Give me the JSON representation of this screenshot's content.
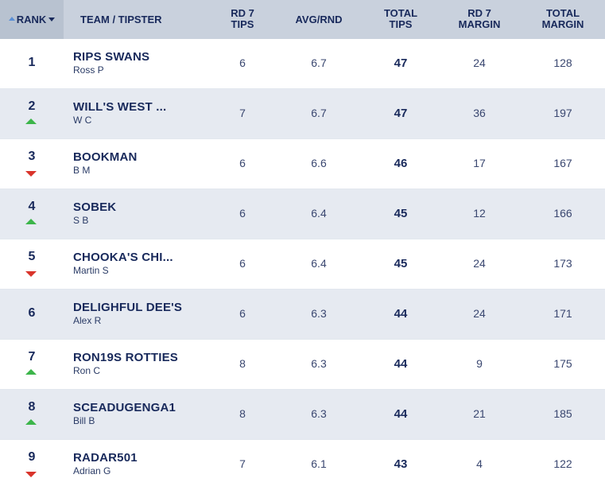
{
  "header": {
    "rank": "RANK",
    "team": "TEAM / TIPSTER",
    "rd_tips": [
      "RD 7",
      "TIPS"
    ],
    "avg": "AVG/RND",
    "total_tips": [
      "TOTAL",
      "TIPS"
    ],
    "rd_margin": [
      "RD 7",
      "MARGIN"
    ],
    "total_margin": [
      "TOTAL",
      "MARGIN"
    ]
  },
  "colors": {
    "up": "#3cb54a",
    "down": "#d9342b",
    "header_bg": "#c9d1dd",
    "alt_row": "#e6eaf1"
  },
  "rows": [
    {
      "rank": "1",
      "movement": "none",
      "team": "RIPS SWANS",
      "tipster": "Ross P",
      "rd_tips": "6",
      "avg": "6.7",
      "total_tips": "47",
      "rd_margin": "24",
      "total_margin": "128"
    },
    {
      "rank": "2",
      "movement": "up",
      "team": "WILL'S WEST ...",
      "tipster": "W C",
      "rd_tips": "7",
      "avg": "6.7",
      "total_tips": "47",
      "rd_margin": "36",
      "total_margin": "197"
    },
    {
      "rank": "3",
      "movement": "down",
      "team": "BOOKMAN",
      "tipster": "B M",
      "rd_tips": "6",
      "avg": "6.6",
      "total_tips": "46",
      "rd_margin": "17",
      "total_margin": "167"
    },
    {
      "rank": "4",
      "movement": "up",
      "team": "SOBEK",
      "tipster": "S B",
      "rd_tips": "6",
      "avg": "6.4",
      "total_tips": "45",
      "rd_margin": "12",
      "total_margin": "166"
    },
    {
      "rank": "5",
      "movement": "down",
      "team": "CHOOKA'S CHI...",
      "tipster": "Martin S",
      "rd_tips": "6",
      "avg": "6.4",
      "total_tips": "45",
      "rd_margin": "24",
      "total_margin": "173"
    },
    {
      "rank": "6",
      "movement": "none",
      "team": "DELIGHFUL DEE'S",
      "tipster": "Alex R",
      "rd_tips": "6",
      "avg": "6.3",
      "total_tips": "44",
      "rd_margin": "24",
      "total_margin": "171"
    },
    {
      "rank": "7",
      "movement": "up",
      "team": "RON19S ROTTIES",
      "tipster": "Ron C",
      "rd_tips": "8",
      "avg": "6.3",
      "total_tips": "44",
      "rd_margin": "9",
      "total_margin": "175"
    },
    {
      "rank": "8",
      "movement": "up",
      "team": "SCEADUGENGA1",
      "tipster": "Bill B",
      "rd_tips": "8",
      "avg": "6.3",
      "total_tips": "44",
      "rd_margin": "21",
      "total_margin": "185"
    },
    {
      "rank": "9",
      "movement": "down",
      "team": "RADAR501",
      "tipster": "Adrian G",
      "rd_tips": "7",
      "avg": "6.1",
      "total_tips": "43",
      "rd_margin": "4",
      "total_margin": "122"
    }
  ]
}
